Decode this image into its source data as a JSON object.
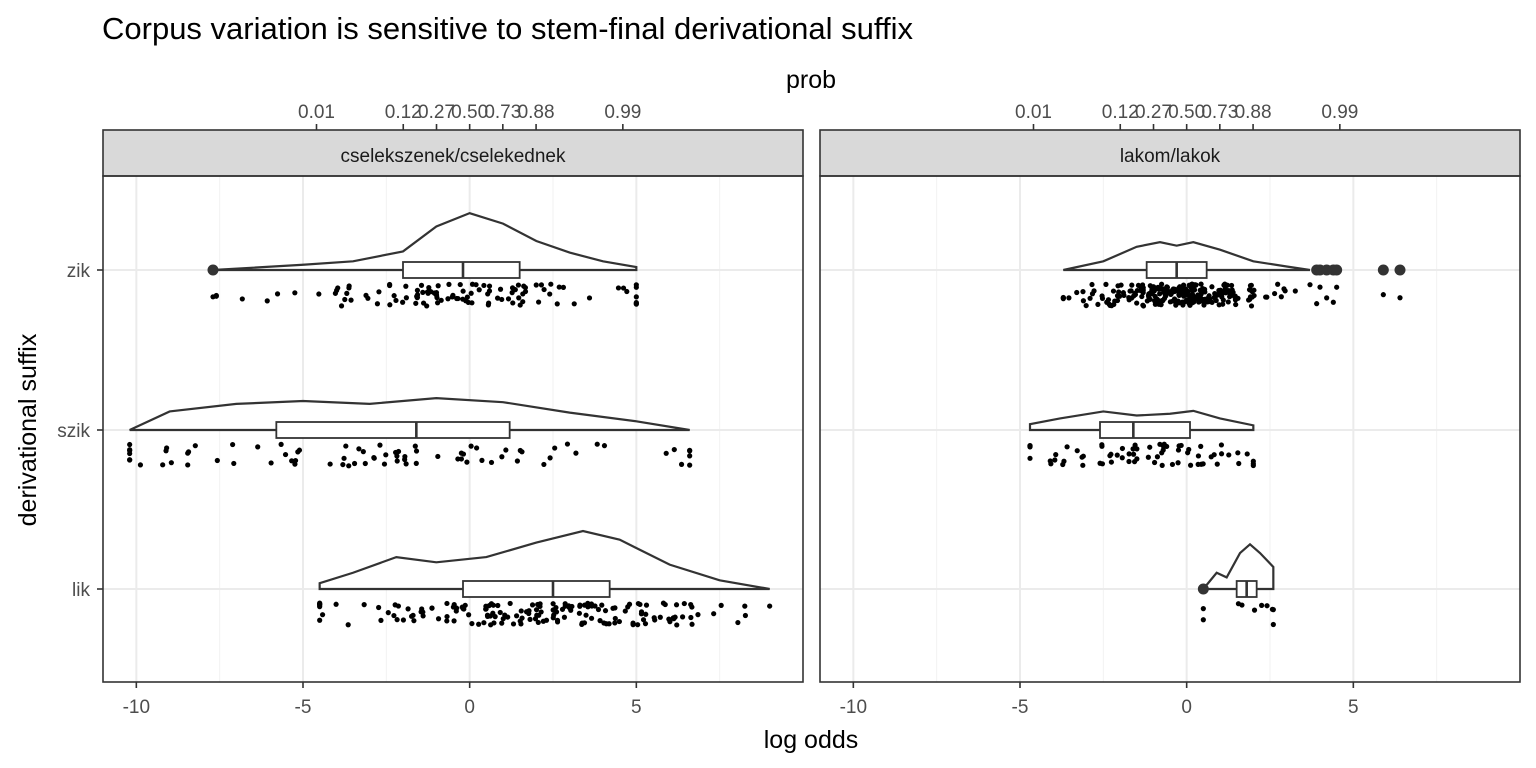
{
  "chart_data": {
    "type": "raincloud",
    "title": "Corpus variation is sensitive to stem-final derivational suffix",
    "xlabel": "log odds",
    "ylabel": "derivational suffix",
    "secondary_x_label": "prob",
    "xlim": [
      -11,
      10
    ],
    "x_ticks": [
      -10,
      -5,
      0,
      5
    ],
    "x_tick_labels": [
      "-10",
      "-5",
      "0",
      "5"
    ],
    "prob_ticks": [
      0.01,
      0.12,
      0.27,
      0.5,
      0.73,
      0.88,
      0.99
    ],
    "prob_tick_labels": [
      "0.01",
      "0.12",
      "0.27",
      "0.50",
      "0.73",
      "0.88",
      "0.99"
    ],
    "categories": [
      "zik",
      "szik",
      "lik"
    ],
    "grid": true,
    "panels": [
      {
        "label": "cselekszenek/cselekednek",
        "groups": [
          {
            "category": "zik",
            "box": {
              "lower_whisker": -7.6,
              "q1": -2.0,
              "median": -0.2,
              "q3": 1.5,
              "upper_whisker": 5.0
            },
            "outliers": [
              -7.7
            ],
            "density": [
              [
                -7.7,
                0.0
              ],
              [
                -6.5,
                0.04
              ],
              [
                -5.0,
                0.09
              ],
              [
                -3.5,
                0.15
              ],
              [
                -2.0,
                0.32
              ],
              [
                -1.0,
                0.75
              ],
              [
                0.0,
                0.98
              ],
              [
                1.0,
                0.8
              ],
              [
                2.0,
                0.5
              ],
              [
                3.0,
                0.3
              ],
              [
                4.0,
                0.15
              ],
              [
                5.0,
                0.05
              ]
            ],
            "n_points": 110
          },
          {
            "category": "szik",
            "box": {
              "lower_whisker": -10.2,
              "q1": -5.8,
              "median": -1.6,
              "q3": 1.2,
              "upper_whisker": 6.6
            },
            "outliers": [],
            "density": [
              [
                -10.2,
                0.0
              ],
              [
                -9.0,
                0.32
              ],
              [
                -7.0,
                0.45
              ],
              [
                -5.0,
                0.5
              ],
              [
                -3.0,
                0.45
              ],
              [
                -1.0,
                0.55
              ],
              [
                1.0,
                0.48
              ],
              [
                3.0,
                0.3
              ],
              [
                5.0,
                0.15
              ],
              [
                6.6,
                0.0
              ]
            ],
            "n_points": 80
          },
          {
            "category": "lik",
            "box": {
              "lower_whisker": -4.5,
              "q1": -0.2,
              "median": 2.5,
              "q3": 4.2,
              "upper_whisker": 9.0
            },
            "outliers": [],
            "density": [
              [
                -4.5,
                0.1
              ],
              [
                -3.5,
                0.28
              ],
              [
                -2.2,
                0.55
              ],
              [
                -1.0,
                0.46
              ],
              [
                0.5,
                0.55
              ],
              [
                2.0,
                0.8
              ],
              [
                3.4,
                1.0
              ],
              [
                4.5,
                0.85
              ],
              [
                6.0,
                0.42
              ],
              [
                7.5,
                0.15
              ],
              [
                9.0,
                0.0
              ]
            ],
            "n_points": 170
          }
        ]
      },
      {
        "label": "lakom/lakok",
        "groups": [
          {
            "category": "zik",
            "box": {
              "lower_whisker": -3.7,
              "q1": -1.2,
              "median": -0.3,
              "q3": 0.6,
              "upper_whisker": 3.7
            },
            "outliers": [
              3.9,
              4.0,
              4.2,
              4.4,
              4.5,
              5.9,
              6.4
            ],
            "density": [
              [
                -3.7,
                0.0
              ],
              [
                -2.5,
                0.15
              ],
              [
                -1.5,
                0.4
              ],
              [
                -0.8,
                0.48
              ],
              [
                -0.3,
                0.42
              ],
              [
                0.2,
                0.48
              ],
              [
                1.0,
                0.35
              ],
              [
                2.0,
                0.15
              ],
              [
                3.0,
                0.06
              ],
              [
                3.7,
                0.0
              ]
            ],
            "n_points": 250
          },
          {
            "category": "szik",
            "box": {
              "lower_whisker": -4.7,
              "q1": -2.6,
              "median": -1.6,
              "q3": 0.1,
              "upper_whisker": 2.0
            },
            "outliers": [],
            "density": [
              [
                -4.7,
                0.1
              ],
              [
                -3.8,
                0.2
              ],
              [
                -2.5,
                0.32
              ],
              [
                -1.5,
                0.25
              ],
              [
                -0.5,
                0.28
              ],
              [
                0.2,
                0.33
              ],
              [
                1.0,
                0.2
              ],
              [
                2.0,
                0.08
              ]
            ],
            "n_points": 70
          },
          {
            "category": "lik",
            "box": {
              "lower_whisker": 0.5,
              "q1": 1.5,
              "median": 1.8,
              "q3": 2.1,
              "upper_whisker": 2.6
            },
            "outliers": [
              0.5
            ],
            "density": [
              [
                0.5,
                0.0
              ],
              [
                0.9,
                0.28
              ],
              [
                1.2,
                0.2
              ],
              [
                1.6,
                0.62
              ],
              [
                1.9,
                0.77
              ],
              [
                2.2,
                0.62
              ],
              [
                2.6,
                0.38
              ]
            ],
            "n_points": 10
          }
        ]
      }
    ]
  }
}
